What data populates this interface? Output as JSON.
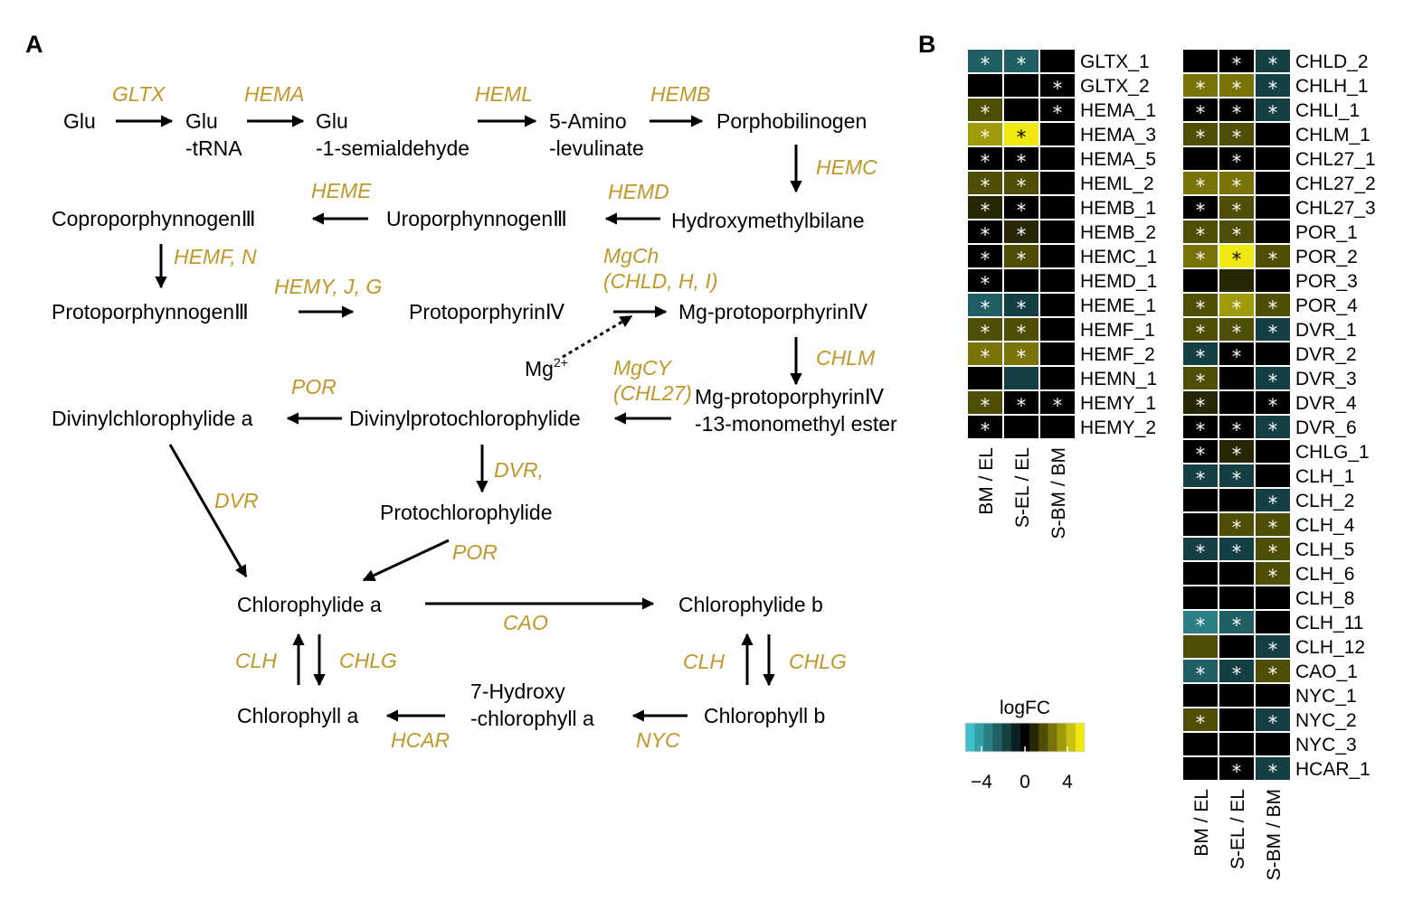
{
  "panels": {
    "a": "A",
    "b": "B"
  },
  "pathway": {
    "nodes": {
      "glu": [
        "Glu"
      ],
      "glu_trna": [
        "Glu",
        "-tRNA"
      ],
      "glu_semi": [
        "Glu",
        "-1-semialdehyde"
      ],
      "ala": [
        "5-Amino",
        "-levulinate"
      ],
      "pbg": [
        "Porphobilinogen"
      ],
      "hmb": [
        "Hydroxymethylbilane"
      ],
      "uro": [
        "UroporphynnogenⅢ"
      ],
      "copro": [
        "CoproporphynnogenⅢ"
      ],
      "protogen": [
        "ProtoporphynnogenⅢ"
      ],
      "proto": [
        "ProtoporphyrinⅣ"
      ],
      "mgproto": [
        "Mg-protoporphyrinⅣ"
      ],
      "mg": [
        "Mg"
      ],
      "mg_sup": "2+",
      "mgme": [
        "Mg-protoporphyrinⅣ",
        "-13-monomethyl ester"
      ],
      "dvpchlide": [
        "Divinylprotochlorophylide"
      ],
      "dvchlide": [
        "Divinylchlorophylide a"
      ],
      "pchlide": [
        "Protochlorophylide"
      ],
      "chlide_a": [
        "Chlorophylide a"
      ],
      "chlide_b": [
        "Chlorophylide b"
      ],
      "chl_a": [
        "Chlorophyll a"
      ],
      "hydroxy": [
        "7-Hydroxy",
        "-chlorophyll a"
      ],
      "chl_b": [
        "Chlorophyll b"
      ]
    },
    "enzymes": {
      "gltx": [
        "GLTX"
      ],
      "hema": [
        "HEMA"
      ],
      "heml": [
        "HEML"
      ],
      "hemb": [
        "HEMB"
      ],
      "hemc": [
        "HEMC"
      ],
      "hemd": [
        "HEMD"
      ],
      "heme": [
        "HEME"
      ],
      "hemf": [
        "HEMF, N"
      ],
      "hemy": [
        "HEMY, J, G"
      ],
      "mgch": [
        "MgCh",
        "(CHLD, H, I)"
      ],
      "chlm": [
        "CHLM"
      ],
      "mgcy": [
        "MgCY",
        "(CHL27)"
      ],
      "por1": [
        "POR"
      ],
      "dvr1": [
        "DVR,"
      ],
      "dvr2": [
        "DVR"
      ],
      "por2": [
        "POR"
      ],
      "cao": [
        "CAO"
      ],
      "clh1": [
        "CLH"
      ],
      "chlg1": [
        "CHLG"
      ],
      "clh2": [
        "CLH"
      ],
      "chlg2": [
        "CHLG"
      ],
      "hcar": [
        "HCAR"
      ],
      "nyc": [
        "NYC"
      ]
    }
  },
  "heatmap": {
    "legend_title": "logFC",
    "legend_ticks": [
      "−4",
      "0",
      "4"
    ],
    "scale_min": -6,
    "scale_max": 6,
    "columns": [
      "BM / EL",
      "S-EL / EL",
      "S-BM / BM"
    ],
    "colors": {
      "neg_strong": "#40c0c8",
      "zero": "#000000",
      "pos_strong": "#f0e810"
    },
    "left_block": [
      {
        "gene": "GLTX_1",
        "values": [
          -3,
          -3,
          0
        ],
        "stars": [
          true,
          true,
          false
        ]
      },
      {
        "gene": "GLTX_2",
        "values": [
          0,
          0,
          0
        ],
        "stars": [
          false,
          false,
          true
        ]
      },
      {
        "gene": "HEMA_1",
        "values": [
          2,
          0,
          0
        ],
        "stars": [
          true,
          false,
          true
        ]
      },
      {
        "gene": "HEMA_3",
        "values": [
          4,
          6,
          0
        ],
        "stars": [
          true,
          true,
          false
        ]
      },
      {
        "gene": "HEMA_5",
        "values": [
          0,
          0,
          0
        ],
        "stars": [
          true,
          true,
          false
        ]
      },
      {
        "gene": "HEML_2",
        "values": [
          2,
          2,
          0
        ],
        "stars": [
          true,
          true,
          false
        ]
      },
      {
        "gene": "HEMB_1",
        "values": [
          1,
          0,
          0
        ],
        "stars": [
          true,
          true,
          false
        ]
      },
      {
        "gene": "HEMB_2",
        "values": [
          0,
          1,
          0
        ],
        "stars": [
          true,
          true,
          false
        ]
      },
      {
        "gene": "HEMC_1",
        "values": [
          0,
          2,
          0
        ],
        "stars": [
          true,
          true,
          false
        ]
      },
      {
        "gene": "HEMD_1",
        "values": [
          0,
          0,
          0
        ],
        "stars": [
          true,
          false,
          false
        ]
      },
      {
        "gene": "HEME_1",
        "values": [
          -3,
          -2,
          0
        ],
        "stars": [
          true,
          true,
          false
        ]
      },
      {
        "gene": "HEMF_1",
        "values": [
          2,
          2,
          0
        ],
        "stars": [
          true,
          true,
          false
        ]
      },
      {
        "gene": "HEMF_2",
        "values": [
          3,
          3,
          0
        ],
        "stars": [
          true,
          true,
          false
        ]
      },
      {
        "gene": "HEMN_1",
        "values": [
          0,
          -2,
          0
        ],
        "stars": [
          false,
          false,
          false
        ]
      },
      {
        "gene": "HEMY_1",
        "values": [
          2,
          0,
          0
        ],
        "stars": [
          true,
          true,
          true
        ]
      },
      {
        "gene": "HEMY_2",
        "values": [
          0,
          0,
          0
        ],
        "stars": [
          true,
          false,
          false
        ]
      }
    ],
    "right_block": [
      {
        "gene": "CHLD_2",
        "values": [
          0,
          0,
          -2
        ],
        "stars": [
          false,
          true,
          true
        ]
      },
      {
        "gene": "CHLH_1",
        "values": [
          3,
          3,
          -2
        ],
        "stars": [
          true,
          true,
          true
        ]
      },
      {
        "gene": "CHLI_1",
        "values": [
          0,
          0,
          -2
        ],
        "stars": [
          true,
          true,
          true
        ]
      },
      {
        "gene": "CHLM_1",
        "values": [
          2,
          2,
          0
        ],
        "stars": [
          true,
          true,
          false
        ]
      },
      {
        "gene": "CHL27_1",
        "values": [
          0,
          0,
          0
        ],
        "stars": [
          false,
          true,
          false
        ]
      },
      {
        "gene": "CHL27_2",
        "values": [
          3,
          3,
          0
        ],
        "stars": [
          true,
          true,
          false
        ]
      },
      {
        "gene": "CHL27_3",
        "values": [
          0,
          2,
          0
        ],
        "stars": [
          true,
          true,
          false
        ]
      },
      {
        "gene": "POR_1",
        "values": [
          2,
          2,
          0
        ],
        "stars": [
          true,
          true,
          false
        ]
      },
      {
        "gene": "POR_2",
        "values": [
          3,
          6,
          2
        ],
        "stars": [
          true,
          true,
          true
        ]
      },
      {
        "gene": "POR_3",
        "values": [
          0,
          1,
          0
        ],
        "stars": [
          false,
          false,
          false
        ]
      },
      {
        "gene": "POR_4",
        "values": [
          2,
          4,
          2
        ],
        "stars": [
          true,
          true,
          true
        ]
      },
      {
        "gene": "DVR_1",
        "values": [
          2,
          2,
          -2
        ],
        "stars": [
          true,
          true,
          true
        ]
      },
      {
        "gene": "DVR_2",
        "values": [
          -2,
          0,
          0
        ],
        "stars": [
          true,
          true,
          false
        ]
      },
      {
        "gene": "DVR_3",
        "values": [
          2,
          0,
          -2
        ],
        "stars": [
          true,
          false,
          true
        ]
      },
      {
        "gene": "DVR_4",
        "values": [
          1,
          0,
          0
        ],
        "stars": [
          true,
          false,
          true
        ]
      },
      {
        "gene": "DVR_6",
        "values": [
          0,
          0,
          -2
        ],
        "stars": [
          true,
          true,
          true
        ]
      },
      {
        "gene": "CHLG_1",
        "values": [
          0,
          1,
          0
        ],
        "stars": [
          true,
          true,
          false
        ]
      },
      {
        "gene": "CLH_1",
        "values": [
          -2,
          -2,
          0
        ],
        "stars": [
          true,
          true,
          false
        ]
      },
      {
        "gene": "CLH_2",
        "values": [
          0,
          0,
          -2
        ],
        "stars": [
          false,
          false,
          true
        ]
      },
      {
        "gene": "CLH_4",
        "values": [
          0,
          2,
          2
        ],
        "stars": [
          false,
          true,
          true
        ]
      },
      {
        "gene": "CLH_5",
        "values": [
          -2,
          -2,
          2
        ],
        "stars": [
          true,
          true,
          true
        ]
      },
      {
        "gene": "CLH_6",
        "values": [
          0,
          0,
          2
        ],
        "stars": [
          false,
          false,
          true
        ]
      },
      {
        "gene": "CLH_8",
        "values": [
          0,
          0,
          0
        ],
        "stars": [
          false,
          false,
          false
        ]
      },
      {
        "gene": "CLH_11",
        "values": [
          -4,
          -3,
          0
        ],
        "stars": [
          true,
          true,
          false
        ]
      },
      {
        "gene": "CLH_12",
        "values": [
          2,
          0,
          -2
        ],
        "stars": [
          false,
          false,
          true
        ]
      },
      {
        "gene": "CAO_1",
        "values": [
          -3,
          -2,
          2
        ],
        "stars": [
          true,
          true,
          true
        ]
      },
      {
        "gene": "NYC_1",
        "values": [
          0,
          0,
          0
        ],
        "stars": [
          false,
          false,
          false
        ]
      },
      {
        "gene": "NYC_2",
        "values": [
          2,
          0,
          -2
        ],
        "stars": [
          true,
          false,
          true
        ]
      },
      {
        "gene": "NYC_3",
        "values": [
          0,
          0,
          0
        ],
        "stars": [
          false,
          false,
          false
        ]
      },
      {
        "gene": "HCAR_1",
        "values": [
          0,
          0,
          -2
        ],
        "stars": [
          false,
          true,
          true
        ]
      }
    ]
  }
}
